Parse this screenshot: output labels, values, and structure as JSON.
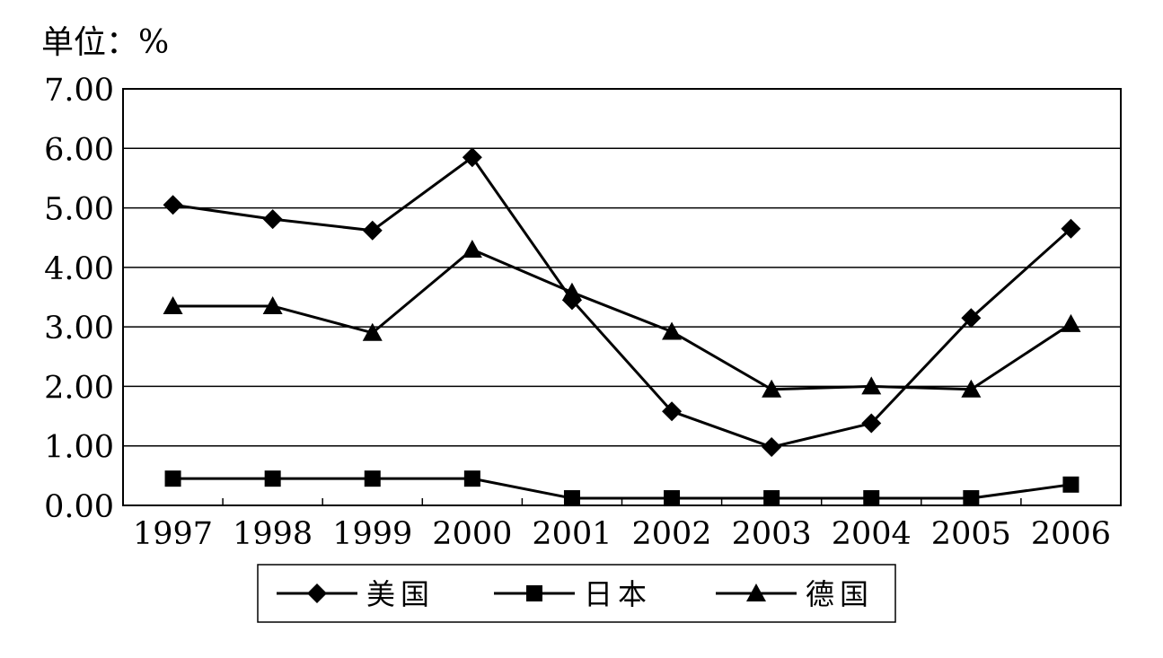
{
  "chart_data": {
    "type": "line",
    "unit_label": "单位：%",
    "categories": [
      "1997",
      "1998",
      "1999",
      "2000",
      "2001",
      "2002",
      "2003",
      "2004",
      "2005",
      "2006"
    ],
    "y_ticks": [
      "0.00",
      "1.00",
      "2.00",
      "3.00",
      "4.00",
      "5.00",
      "6.00",
      "7.00"
    ],
    "ylim": [
      0,
      7
    ],
    "grid": true,
    "legend_position": "bottom",
    "series": [
      {
        "name": "美国",
        "marker": "diamond",
        "color": "#000000",
        "values": [
          5.05,
          4.81,
          4.62,
          5.85,
          3.45,
          1.58,
          0.98,
          1.38,
          3.15,
          4.65
        ]
      },
      {
        "name": "日本",
        "marker": "square",
        "color": "#000000",
        "values": [
          0.45,
          0.45,
          0.45,
          0.45,
          0.12,
          0.12,
          0.12,
          0.12,
          0.12,
          0.35
        ]
      },
      {
        "name": "德国",
        "marker": "triangle",
        "color": "#000000",
        "values": [
          3.35,
          3.35,
          2.9,
          4.3,
          3.58,
          2.92,
          1.95,
          2.0,
          1.95,
          3.05
        ]
      }
    ]
  }
}
